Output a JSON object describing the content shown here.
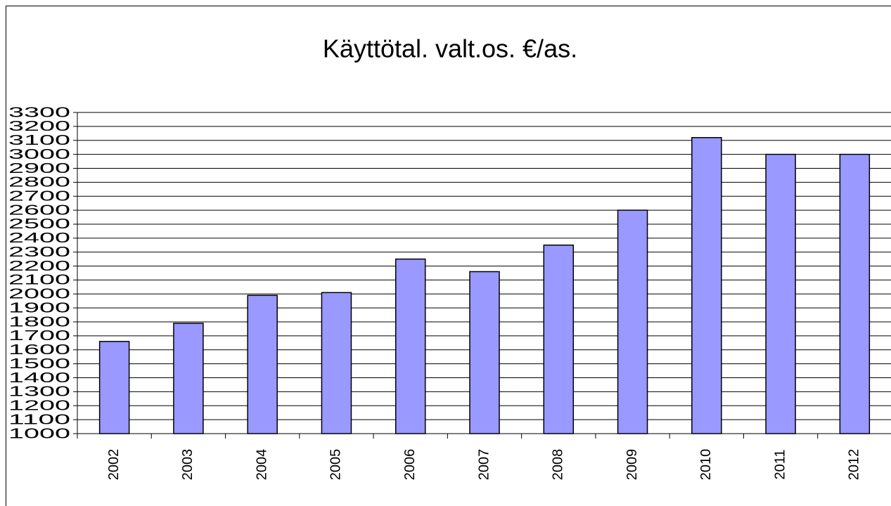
{
  "chart_data": {
    "type": "bar",
    "title": "Käyttötal. valt.os.  €/as.",
    "categories": [
      "2002",
      "2003",
      "2004",
      "2005",
      "2006",
      "2007",
      "2008",
      "2009",
      "2010",
      "2011",
      "2012"
    ],
    "values": [
      1660,
      1790,
      1990,
      2010,
      2250,
      2160,
      2350,
      2600,
      3120,
      3000,
      3000
    ],
    "color": "#9999ff",
    "ylim": [
      1000,
      3300
    ],
    "yticks": [
      1000,
      1100,
      1200,
      1300,
      1400,
      1500,
      1600,
      1700,
      1800,
      1900,
      2000,
      2100,
      2200,
      2300,
      2400,
      2500,
      2600,
      2700,
      2800,
      2900,
      3000,
      3100,
      3200,
      3300
    ],
    "grid": true
  }
}
